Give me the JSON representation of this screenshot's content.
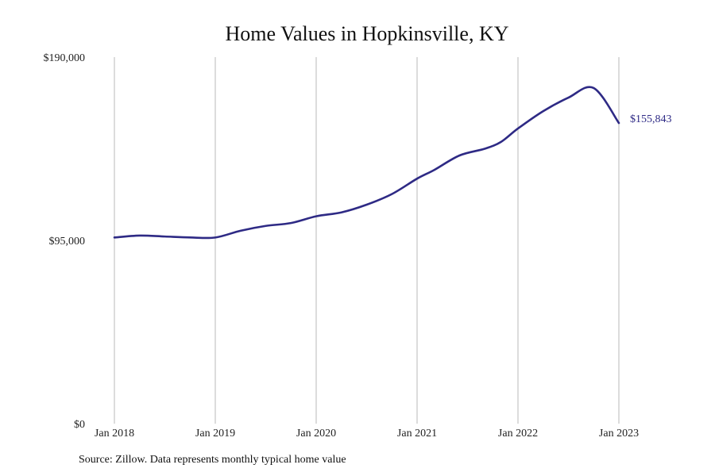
{
  "chart_data": {
    "type": "line",
    "title": "Home Values in Hopkinsville, KY",
    "xlabel": "",
    "ylabel": "",
    "ylim": [
      0,
      190000
    ],
    "y_ticks": [
      {
        "value": 0,
        "label": "$0"
      },
      {
        "value": 95000,
        "label": "$95,000"
      },
      {
        "value": 190000,
        "label": "$190,000"
      }
    ],
    "x_ticks": [
      {
        "value": 2018,
        "label": "Jan 2018"
      },
      {
        "value": 2019,
        "label": "Jan 2019"
      },
      {
        "value": 2020,
        "label": "Jan 2020"
      },
      {
        "value": 2021,
        "label": "Jan 2021"
      },
      {
        "value": 2022,
        "label": "Jan 2022"
      },
      {
        "value": 2023,
        "label": "Jan 2023"
      }
    ],
    "xlim": [
      2018,
      2023
    ],
    "grid": "vertical",
    "series": [
      {
        "name": "Typical home value",
        "color": "#2e2a85",
        "x": [
          2018.0,
          2018.25,
          2018.5,
          2018.75,
          2019.0,
          2019.25,
          2019.5,
          2019.75,
          2020.0,
          2020.25,
          2020.5,
          2020.75,
          2021.0,
          2021.17,
          2021.42,
          2021.67,
          2021.83,
          2022.0,
          2022.25,
          2022.5,
          2022.75,
          2023.0
        ],
        "y": [
          96500,
          97500,
          97000,
          96500,
          96500,
          100000,
          102500,
          104000,
          107500,
          109500,
          113500,
          119000,
          127000,
          131500,
          139000,
          142500,
          146000,
          153000,
          162000,
          169000,
          174000,
          155843
        ]
      }
    ],
    "end_label": "$155,843"
  },
  "footer": {
    "source": "Source: Zillow. Data represents monthly typical home value"
  }
}
